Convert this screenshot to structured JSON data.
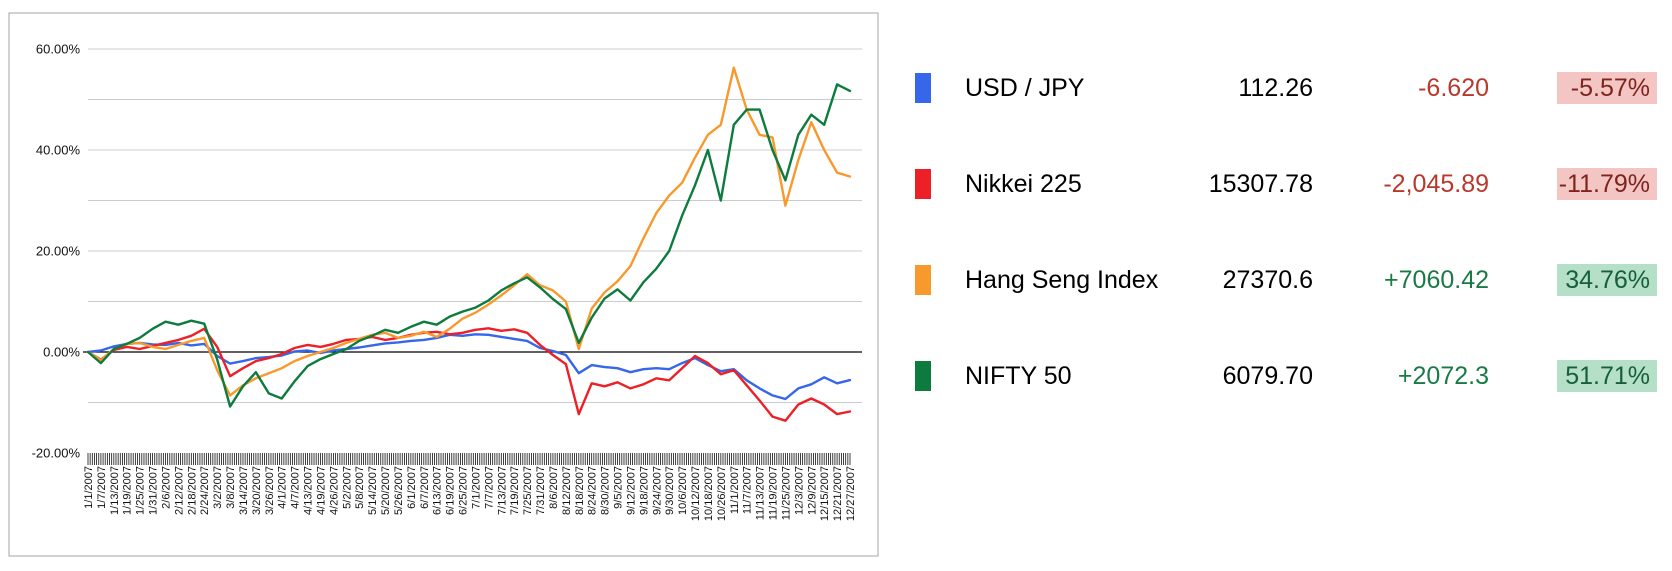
{
  "chart": {
    "y_axis_ticks": [
      {
        "value": 60,
        "label": "60.00%"
      },
      {
        "value": 40,
        "label": "40.00%"
      },
      {
        "value": 20,
        "label": "20.00%"
      },
      {
        "value": 0,
        "label": "0.00%"
      },
      {
        "value": -20,
        "label": "-20.00%"
      }
    ],
    "minor_grid_values": [
      60,
      50,
      40,
      30,
      20,
      10,
      -10
    ],
    "zero_line_value": 0
  },
  "chart_data": {
    "type": "line",
    "title": "",
    "xlabel": "",
    "ylabel": "",
    "unit": "%",
    "ylim": [
      -20,
      60
    ],
    "grid": true,
    "legend_position": "right-panel",
    "x": [
      "1/1/2007",
      "1/7/2007",
      "1/13/2007",
      "1/19/2007",
      "1/25/2007",
      "1/31/2007",
      "2/6/2007",
      "2/12/2007",
      "2/18/2007",
      "2/24/2007",
      "3/2/2007",
      "3/8/2007",
      "3/14/2007",
      "3/20/2007",
      "3/26/2007",
      "4/1/2007",
      "4/7/2007",
      "4/13/2007",
      "4/19/2007",
      "4/26/2007",
      "5/2/2007",
      "5/8/2007",
      "5/14/2007",
      "5/20/2007",
      "5/26/2007",
      "6/1/2007",
      "6/7/2007",
      "6/13/2007",
      "6/19/2007",
      "6/25/2007",
      "7/1/2007",
      "7/7/2007",
      "7/13/2007",
      "7/19/2007",
      "7/25/2007",
      "7/31/2007",
      "8/6/2007",
      "8/12/2007",
      "8/18/2007",
      "8/24/2007",
      "8/30/2007",
      "9/5/2007",
      "9/12/2007",
      "9/18/2007",
      "9/24/2007",
      "9/30/2007",
      "10/6/2007",
      "10/12/2007",
      "10/18/2007",
      "10/26/2007",
      "11/1/2007",
      "11/7/2007",
      "11/13/2007",
      "11/19/2007",
      "11/25/2007",
      "12/3/2007",
      "12/9/2007",
      "12/15/2007",
      "12/21/2007",
      "12/27/2007"
    ],
    "series": [
      {
        "name": "USD / JPY",
        "color": "#3666ea",
        "values": [
          0,
          0.3,
          1.1,
          1.6,
          1.8,
          1.5,
          1.4,
          1.8,
          1.3,
          1.6,
          -0.8,
          -2.3,
          -1.8,
          -1.2,
          -1.0,
          -0.7,
          0.1,
          0.3,
          -0.2,
          0.3,
          0.6,
          0.9,
          1.3,
          1.7,
          1.9,
          2.2,
          2.4,
          2.8,
          3.4,
          3.2,
          3.5,
          3.4,
          3.0,
          2.6,
          2.2,
          0.8,
          0.2,
          -0.6,
          -4.2,
          -2.6,
          -3.0,
          -3.2,
          -4.0,
          -3.4,
          -3.2,
          -3.4,
          -2.2,
          -1.2,
          -2.6,
          -3.8,
          -3.4,
          -5.6,
          -7.2,
          -8.6,
          -9.3,
          -7.2,
          -6.4,
          -5.0,
          -6.2,
          -5.57
        ]
      },
      {
        "name": "Nikkei 225",
        "color": "#ec2027",
        "values": [
          0,
          -1.5,
          0.4,
          1.0,
          0.6,
          1.2,
          1.8,
          2.4,
          3.2,
          4.6,
          1.0,
          -4.8,
          -3.2,
          -1.8,
          -1.2,
          -0.4,
          0.8,
          1.4,
          1.0,
          1.6,
          2.4,
          2.6,
          3.0,
          2.4,
          2.8,
          3.4,
          3.8,
          4.0,
          3.5,
          3.8,
          4.4,
          4.7,
          4.2,
          4.5,
          3.8,
          1.4,
          -0.6,
          -2.4,
          -12.3,
          -6.2,
          -6.8,
          -6.0,
          -7.2,
          -6.4,
          -5.2,
          -5.6,
          -3.2,
          -0.8,
          -2.2,
          -4.4,
          -3.6,
          -6.6,
          -9.6,
          -12.8,
          -13.6,
          -10.4,
          -9.2,
          -10.4,
          -12.3,
          -11.79
        ]
      },
      {
        "name": "Hang Seng Index",
        "color": "#f8992d",
        "values": [
          0,
          -1.6,
          0.6,
          1.6,
          1.8,
          1.0,
          0.6,
          1.4,
          2.2,
          2.8,
          -3.6,
          -8.6,
          -6.6,
          -5.2,
          -4.2,
          -3.2,
          -1.8,
          -0.8,
          0.0,
          0.8,
          1.8,
          2.6,
          3.4,
          3.8,
          2.8,
          3.2,
          4.0,
          3.0,
          4.6,
          6.6,
          7.8,
          9.4,
          11.2,
          13.2,
          15.4,
          13.2,
          12.2,
          10.0,
          0.6,
          8.6,
          11.8,
          14.0,
          17.0,
          22.5,
          27.5,
          31.0,
          33.5,
          38.5,
          43.0,
          45.0,
          56.3,
          48.0,
          43.0,
          42.5,
          29.0,
          38.0,
          45.5,
          40.0,
          35.5,
          34.76
        ]
      },
      {
        "name": "NIFTY 50",
        "color": "#0e7b3e",
        "values": [
          0,
          -2.2,
          0.6,
          1.6,
          2.8,
          4.6,
          6.0,
          5.4,
          6.2,
          5.6,
          -1.5,
          -10.8,
          -6.8,
          -4.0,
          -8.2,
          -9.2,
          -5.8,
          -2.8,
          -1.4,
          -0.4,
          0.6,
          2.2,
          3.2,
          4.4,
          3.8,
          5.0,
          6.0,
          5.4,
          7.0,
          8.0,
          8.8,
          10.2,
          12.2,
          13.6,
          14.8,
          12.8,
          10.5,
          8.5,
          1.8,
          6.8,
          10.6,
          12.4,
          10.2,
          13.8,
          16.5,
          20.0,
          27.0,
          33.0,
          40.0,
          30.0,
          45.0,
          48.0,
          48.0,
          40.0,
          34.0,
          43.0,
          47.0,
          45.0,
          53.0,
          51.71
        ]
      }
    ]
  },
  "legend": {
    "rows": [
      {
        "name": "USD / JPY",
        "value": "112.26",
        "change": "-6.620",
        "pct": "-5.57%",
        "direction": "negative",
        "swatch_color": "#3666ea",
        "badge_bg": "#f3c6c3",
        "badge_text_color": "#7f241d"
      },
      {
        "name": "Nikkei 225",
        "value": "15307.78",
        "change": "-2,045.89",
        "pct": "-11.79%",
        "direction": "negative",
        "swatch_color": "#ec2027",
        "badge_bg": "#f3c6c3",
        "badge_text_color": "#7f241d"
      },
      {
        "name": "Hang Seng Index",
        "value": "27370.6",
        "change": "+7060.42",
        "pct": "34.76%",
        "direction": "positive",
        "swatch_color": "#f8992d",
        "badge_bg": "#b5dfc6",
        "badge_text_color": "#15603a"
      },
      {
        "name": "NIFTY 50",
        "value": "6079.70",
        "change": "+2072.3",
        "pct": "51.71%",
        "direction": "positive",
        "swatch_color": "#0e7b3e",
        "badge_bg": "#b5dfc6",
        "badge_text_color": "#15603a"
      }
    ]
  },
  "colors": {
    "grid_line": "#cccccc",
    "zero_line": "#000000",
    "chart_border": "#a6a6a6",
    "tick_text": "#111111",
    "negative_text": "#b9382c",
    "positive_text": "#1a7a46"
  }
}
